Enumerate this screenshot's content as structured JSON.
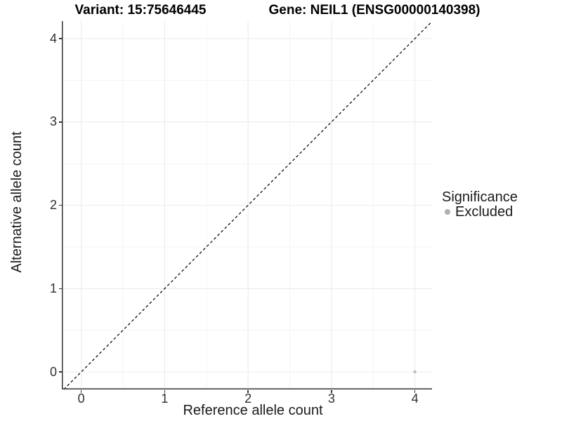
{
  "chart_data": {
    "type": "scatter",
    "titles": {
      "left": "Variant: 15:75646445",
      "right": "Gene: NEIL1 (ENSG00000140398)"
    },
    "xlabel": "Reference allele count",
    "ylabel": "Alternative allele count",
    "xlim": [
      -0.21,
      4.21
    ],
    "ylim": [
      -0.21,
      4.21
    ],
    "x_ticks": [
      0,
      1,
      2,
      3,
      4
    ],
    "y_ticks": [
      0,
      1,
      2,
      3,
      4
    ],
    "x_tick_labels": [
      "0",
      "1",
      "2",
      "3",
      "4"
    ],
    "y_tick_labels": [
      "0",
      "1",
      "2",
      "3",
      "4"
    ],
    "grid": {
      "major": true,
      "minor": true
    },
    "legend": {
      "position": "right",
      "title": "Significance",
      "entries": [
        {
          "label": "Excluded",
          "color": "#b0b0b0",
          "marker": "circle"
        }
      ]
    },
    "series": [
      {
        "name": "Excluded",
        "color": "#bdbdbd",
        "points": [
          [
            4,
            0
          ]
        ]
      }
    ],
    "reference_line": {
      "equation": "y = x",
      "style": "dashed",
      "color": "#000000"
    }
  },
  "colors": {
    "background": "#ffffff",
    "axis_line": "#333333",
    "grid_major": "#ebebeb",
    "grid_minor": "#f2f2f2",
    "tick_text": "#303030",
    "point": "#bdbdbd"
  }
}
